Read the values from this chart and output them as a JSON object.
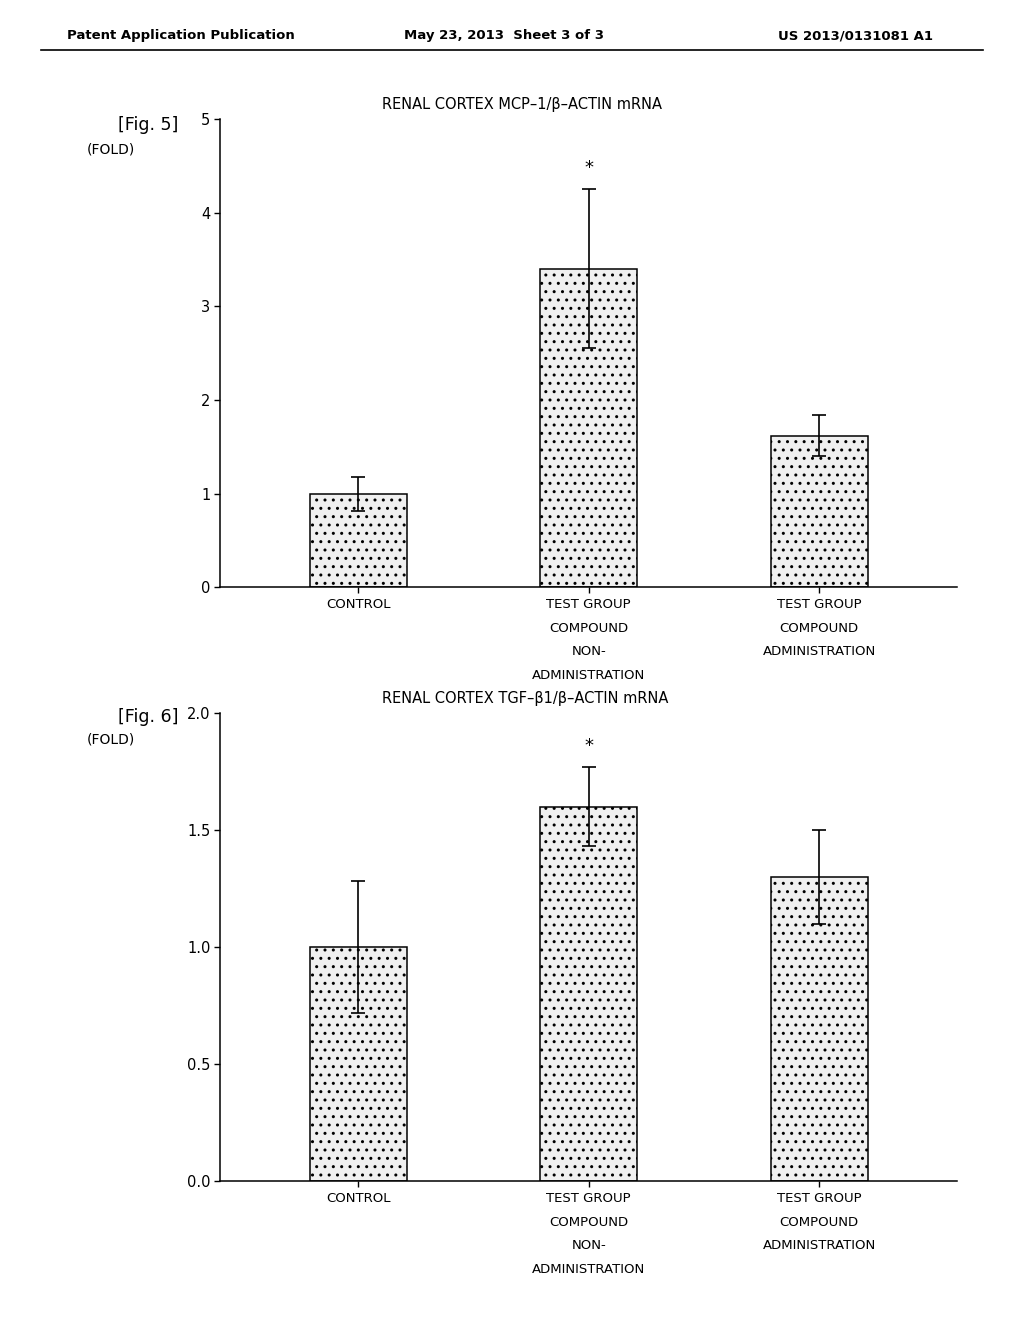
{
  "header_left": "Patent Application Publication",
  "header_mid": "May 23, 2013  Sheet 3 of 3",
  "header_right": "US 2013/0131081 A1",
  "fig5": {
    "label": "[Fig. 5]",
    "title": "RENAL CORTEX MCP–1/β–ACTIN mRNA",
    "ylabel": "(FOLD)",
    "ylim": [
      0,
      5
    ],
    "yticks": [
      0,
      1,
      2,
      3,
      4,
      5
    ],
    "cat_labels": [
      [
        "CONTROL"
      ],
      [
        "TEST GROUP",
        "COMPOUND",
        "NON-",
        "ADMINISTRATION"
      ],
      [
        "TEST GROUP",
        "COMPOUND",
        "ADMINISTRATION"
      ]
    ],
    "values": [
      1.0,
      3.4,
      1.62
    ],
    "errors": [
      0.18,
      0.85,
      0.22
    ],
    "significance": [
      false,
      true,
      false
    ],
    "bar_color": "#f0f0f0",
    "bar_hatch": "..",
    "bar_edgecolor": "#000000"
  },
  "fig6": {
    "label": "[Fig. 6]",
    "title": "RENAL CORTEX TGF–β1/β–ACTIN mRNA",
    "ylabel": "(FOLD)",
    "ylim": [
      0,
      2
    ],
    "yticks": [
      0,
      0.5,
      1,
      1.5,
      2
    ],
    "cat_labels": [
      [
        "CONTROL"
      ],
      [
        "TEST GROUP",
        "COMPOUND",
        "NON-",
        "ADMINISTRATION"
      ],
      [
        "TEST GROUP",
        "COMPOUND",
        "ADMINISTRATION"
      ]
    ],
    "values": [
      1.0,
      1.6,
      1.3
    ],
    "errors": [
      0.28,
      0.17,
      0.2
    ],
    "significance": [
      false,
      true,
      false
    ],
    "bar_color": "#f0f0f0",
    "bar_hatch": "..",
    "bar_edgecolor": "#000000"
  },
  "background_color": "#ffffff",
  "font_color": "#000000"
}
